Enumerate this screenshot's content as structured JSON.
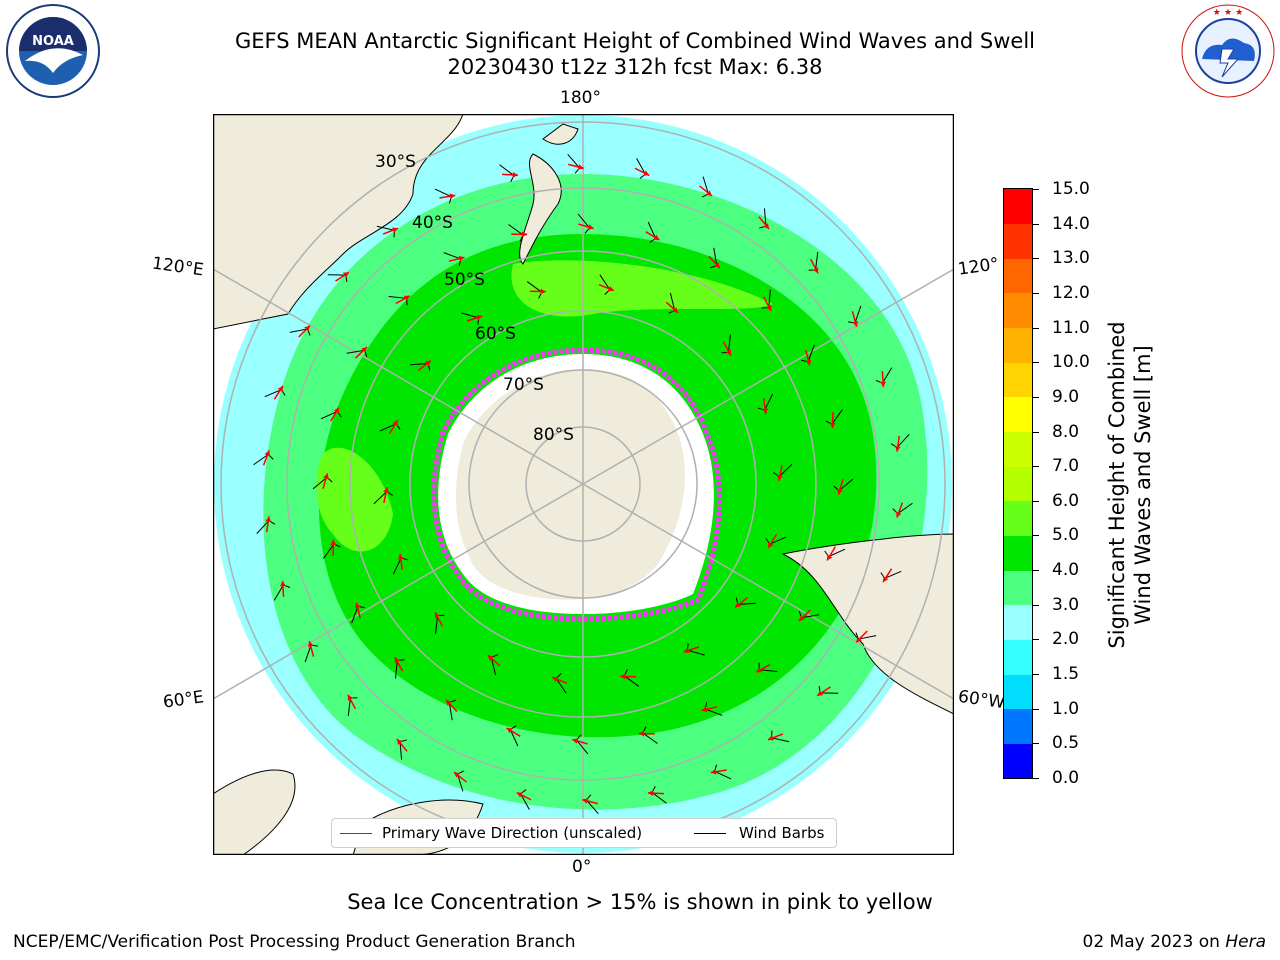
{
  "header": {
    "title_line1": "GEFS MEAN Antarctic Significant Height of Combined Wind Waves and Swell",
    "title_line2": "20230430 t12z 312h fcst   Max: 6.38"
  },
  "logos": {
    "noaa_text": "NOAA",
    "noaa_ring_text": "NATIONAL OCEANIC AND ATMOSPHERIC ADMINISTRATION · U.S. DEPARTMENT OF COMMERCE",
    "nws_ring_text": "NATIONAL WEATHER SERVICE"
  },
  "map": {
    "projection": "south-polar-stereographic",
    "longitude_labels": {
      "top": "180°",
      "bottom": "0°",
      "left_upper": "120°E",
      "left_lower": "60°E",
      "right_upper": "120°",
      "right_lower": "60°W"
    },
    "latitude_labels": [
      "30°S",
      "40°S",
      "50°S",
      "60°S",
      "70°S",
      "80°S"
    ],
    "colors": {
      "land": "#efecdb",
      "ocean_low": "#99ffff",
      "ocean_mid": "#4dff80",
      "ocean_high": "#00e600",
      "ocean_peak": "#66ff1a",
      "antarctica": "#efecdb",
      "ice_shelf": "#ffffff",
      "sea_ice": "#ff33ff",
      "wave_arrow": "#ff0000",
      "wind_barb": "#000000",
      "grid": "#b0b0b0"
    }
  },
  "legend": {
    "wave_label": "Primary Wave Direction (unscaled)",
    "wind_label": "Wind Barbs"
  },
  "colorbar": {
    "title_line1": "Significant Height of Combined",
    "title_line2": "Wind Waves and Swell [m]",
    "tick_labels": [
      "0.0",
      "0.5",
      "1.0",
      "1.5",
      "2.0",
      "3.0",
      "4.0",
      "5.0",
      "6.0",
      "7.0",
      "8.0",
      "9.0",
      "10.0",
      "11.0",
      "12.0",
      "13.0",
      "14.0",
      "15.0"
    ],
    "colors": [
      "#0000ff",
      "#0077ff",
      "#00ddff",
      "#33ffff",
      "#99ffff",
      "#4dff80",
      "#00e600",
      "#66ff1a",
      "#b3ff00",
      "#ccff00",
      "#ffff00",
      "#ffd400",
      "#ffb300",
      "#ff8c00",
      "#ff6600",
      "#ff3300",
      "#ff0000"
    ]
  },
  "footer": {
    "note": "Sea Ice Concentration > 15% is shown in pink to yellow",
    "credit": "NCEP/EMC/Verification Post Processing Product Generation Branch",
    "date_prefix": "02 May 2023 on ",
    "machine": "Hera"
  }
}
